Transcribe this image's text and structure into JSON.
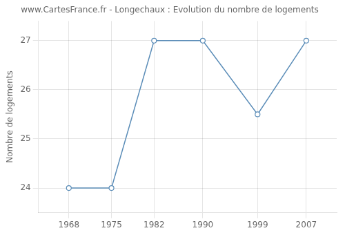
{
  "chart_data": {
    "type": "line",
    "title": "www.CartesFrance.fr - Longechaux : Evolution du nombre de logements",
    "ylabel": "Nombre de logements",
    "x": [
      1968,
      1975,
      1982,
      1990,
      1999,
      2007
    ],
    "values": [
      24,
      24,
      27,
      27,
      25.5,
      27
    ],
    "color": "#5b8db8",
    "marker": "circle",
    "xlim": [
      1963,
      2012
    ],
    "ylim": [
      23.5,
      27.4
    ],
    "xticks": [
      1968,
      1975,
      1982,
      1990,
      1999,
      2007
    ],
    "yticks": [
      24,
      25,
      26,
      27
    ],
    "grid": true
  }
}
